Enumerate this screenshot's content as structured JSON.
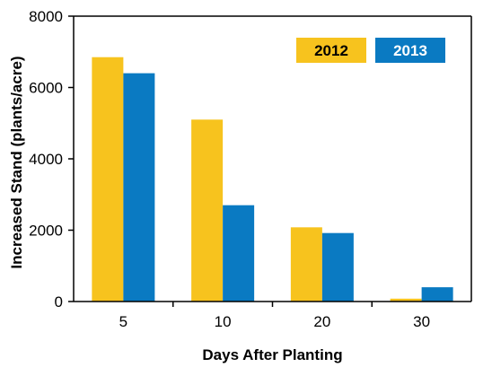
{
  "chart_data": {
    "type": "bar",
    "categories": [
      "5",
      "10",
      "20",
      "30"
    ],
    "series": [
      {
        "name": "2012",
        "values": [
          6850,
          5100,
          2080,
          80
        ],
        "color": "#F7C31E"
      },
      {
        "name": "2013",
        "values": [
          6400,
          2700,
          1920,
          400
        ],
        "color": "#0A7AC2"
      }
    ],
    "title": "",
    "xlabel": "Days After Planting",
    "ylabel": "Increased Stand (plants/acre)",
    "ylim": [
      0,
      8000
    ],
    "yticks": [
      0,
      2000,
      4000,
      6000,
      8000
    ],
    "grid": false,
    "legend_position": "top-right"
  }
}
